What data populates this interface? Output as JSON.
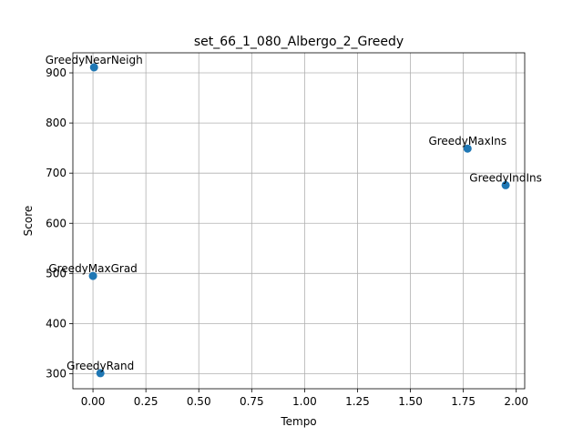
{
  "chart_data": {
    "type": "scatter",
    "title": "set_66_1_080_Albergo_2_Greedy",
    "xlabel": "Tempo",
    "ylabel": "Score",
    "xlim": [
      -0.095,
      2.04
    ],
    "ylim": [
      270,
      940
    ],
    "xticks": [
      0.0,
      0.25,
      0.5,
      0.75,
      1.0,
      1.25,
      1.5,
      1.75,
      2.0
    ],
    "xtick_labels": [
      "0.00",
      "0.25",
      "0.50",
      "0.75",
      "1.00",
      "1.25",
      "1.50",
      "1.75",
      "2.00"
    ],
    "yticks": [
      300,
      400,
      500,
      600,
      700,
      800,
      900
    ],
    "ytick_labels": [
      "300",
      "400",
      "500",
      "600",
      "700",
      "800",
      "900"
    ],
    "grid": true,
    "marker_color": "#1f77b4",
    "points": [
      {
        "label": "GreedyNearNeigh",
        "x": 0.005,
        "y": 911
      },
      {
        "label": "GreedyMaxIns",
        "x": 1.77,
        "y": 749
      },
      {
        "label": "GreedyIndIns",
        "x": 1.95,
        "y": 676
      },
      {
        "label": "GreedyMaxGrad",
        "x": 0.0,
        "y": 495
      },
      {
        "label": "GreedyRand",
        "x": 0.035,
        "y": 301
      }
    ]
  }
}
